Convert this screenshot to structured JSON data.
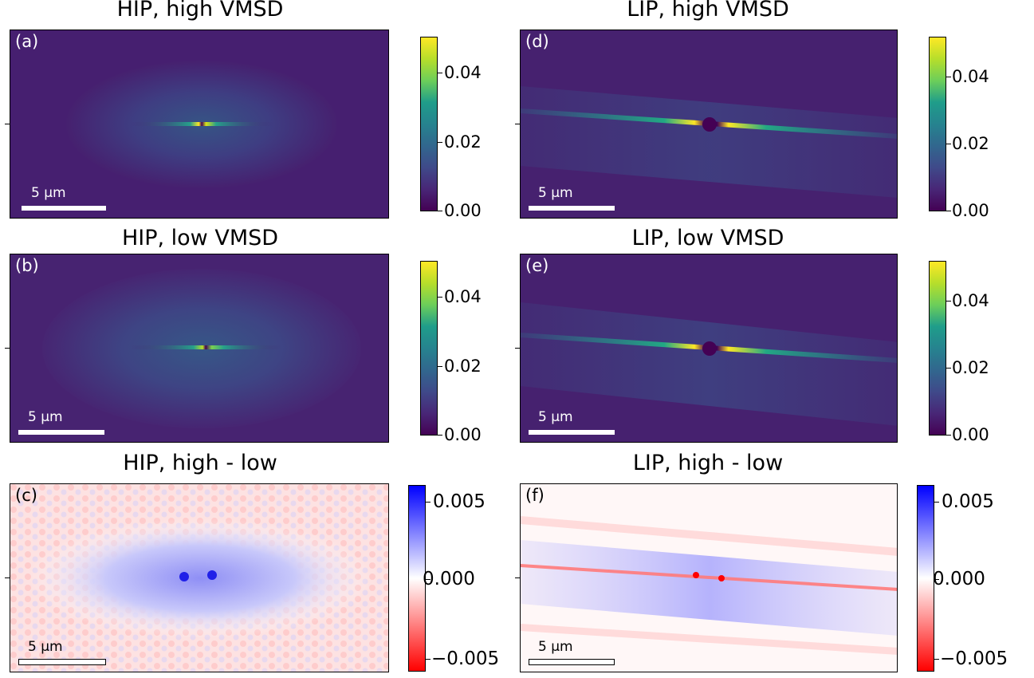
{
  "figure": {
    "panels": [
      {
        "id": "a",
        "title": "HIP, high VMSD",
        "label": "(a)",
        "scale": "5 μm"
      },
      {
        "id": "b",
        "title": "HIP, low VMSD",
        "label": "(b)",
        "scale": "5 μm"
      },
      {
        "id": "c",
        "title": "HIP, high - low",
        "label": "(c)",
        "scale": "5 μm"
      },
      {
        "id": "d",
        "title": "LIP, high VMSD",
        "label": "(d)",
        "scale": "5 μm"
      },
      {
        "id": "e",
        "title": "LIP, low VMSD",
        "label": "(e)",
        "scale": "5 μm"
      },
      {
        "id": "f",
        "title": "LIP, high - low",
        "label": "(f)",
        "scale": "5 μm"
      }
    ],
    "colorbar_viridis": {
      "ticks": [
        "0.04",
        "0.02",
        "0.00"
      ],
      "colormap": "viridis"
    },
    "colorbar_diverging": {
      "ticks": [
        "0.005",
        "0.000",
        "−0.005"
      ],
      "colormap": "bwr"
    }
  }
}
